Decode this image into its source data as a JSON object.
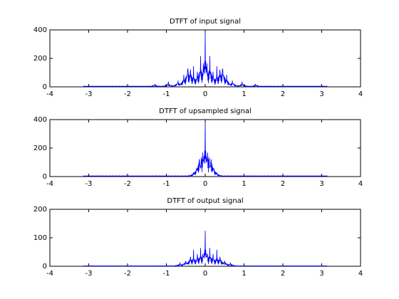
{
  "chart_data": [
    {
      "type": "line",
      "title": "DTFT of input signal",
      "xlim": [
        -4,
        4
      ],
      "ylim": [
        0,
        400
      ],
      "xticks": [
        "-4",
        "-3",
        "-2",
        "-1",
        "0",
        "1",
        "2",
        "3",
        "4"
      ],
      "yticks": [
        "0",
        "200",
        "400"
      ],
      "grid": false,
      "color": "#0000ff",
      "x_range": [
        -3.1416,
        3.1416
      ],
      "peaks": [
        {
          "x": 0.0,
          "y": 395
        },
        {
          "x": -0.05,
          "y": 200
        },
        {
          "x": 0.05,
          "y": 200
        },
        {
          "x": -0.12,
          "y": 270
        },
        {
          "x": 0.12,
          "y": 270
        },
        {
          "x": -0.2,
          "y": 160
        },
        {
          "x": 0.2,
          "y": 160
        },
        {
          "x": -0.3,
          "y": 150
        },
        {
          "x": 0.3,
          "y": 150
        },
        {
          "x": -0.38,
          "y": 200
        },
        {
          "x": 0.38,
          "y": 200
        },
        {
          "x": -0.45,
          "y": 220
        },
        {
          "x": 0.45,
          "y": 220
        },
        {
          "x": -0.55,
          "y": 110
        },
        {
          "x": 0.55,
          "y": 110
        },
        {
          "x": -0.7,
          "y": 60
        },
        {
          "x": 0.7,
          "y": 60
        },
        {
          "x": -0.95,
          "y": 40
        },
        {
          "x": 0.95,
          "y": 40
        },
        {
          "x": -1.3,
          "y": 25
        },
        {
          "x": 1.3,
          "y": 25
        }
      ]
    },
    {
      "type": "line",
      "title": "DTFT of upsampled signal",
      "xlim": [
        -4,
        4
      ],
      "ylim": [
        0,
        400
      ],
      "xticks": [
        "-4",
        "-3",
        "-2",
        "-1",
        "0",
        "1",
        "2",
        "3",
        "4"
      ],
      "yticks": [
        "0",
        "200",
        "400"
      ],
      "grid": false,
      "color": "#0000ff",
      "x_range": [
        -3.1416,
        3.1416
      ],
      "peaks": [
        {
          "x": 0.0,
          "y": 395
        },
        {
          "x": -0.03,
          "y": 200
        },
        {
          "x": 0.03,
          "y": 200
        },
        {
          "x": -0.06,
          "y": 270
        },
        {
          "x": 0.06,
          "y": 270
        },
        {
          "x": -0.1,
          "y": 200
        },
        {
          "x": 0.1,
          "y": 200
        },
        {
          "x": -0.15,
          "y": 210
        },
        {
          "x": 0.15,
          "y": 210
        },
        {
          "x": -0.22,
          "y": 100
        },
        {
          "x": 0.22,
          "y": 100
        },
        {
          "x": -0.3,
          "y": 30
        },
        {
          "x": 0.3,
          "y": 30
        }
      ]
    },
    {
      "type": "line",
      "title": "DTFT of output signal",
      "xlim": [
        -4,
        4
      ],
      "ylim": [
        0,
        200
      ],
      "xticks": [
        "-4",
        "-3",
        "-2",
        "-1",
        "0",
        "1",
        "2",
        "3",
        "4"
      ],
      "yticks": [
        "0",
        "100",
        "200"
      ],
      "grid": false,
      "color": "#0000ff",
      "x_range": [
        -3.1416,
        3.1416
      ],
      "peaks": [
        {
          "x": 0.0,
          "y": 125
        },
        {
          "x": -0.06,
          "y": 70
        },
        {
          "x": 0.06,
          "y": 70
        },
        {
          "x": -0.12,
          "y": 80
        },
        {
          "x": 0.12,
          "y": 80
        },
        {
          "x": -0.2,
          "y": 65
        },
        {
          "x": 0.2,
          "y": 65
        },
        {
          "x": -0.3,
          "y": 60
        },
        {
          "x": 0.3,
          "y": 60
        },
        {
          "x": -0.38,
          "y": 55
        },
        {
          "x": 0.38,
          "y": 55
        },
        {
          "x": -0.5,
          "y": 30
        },
        {
          "x": 0.5,
          "y": 30
        },
        {
          "x": -0.65,
          "y": 15
        },
        {
          "x": 0.65,
          "y": 15
        }
      ]
    }
  ]
}
